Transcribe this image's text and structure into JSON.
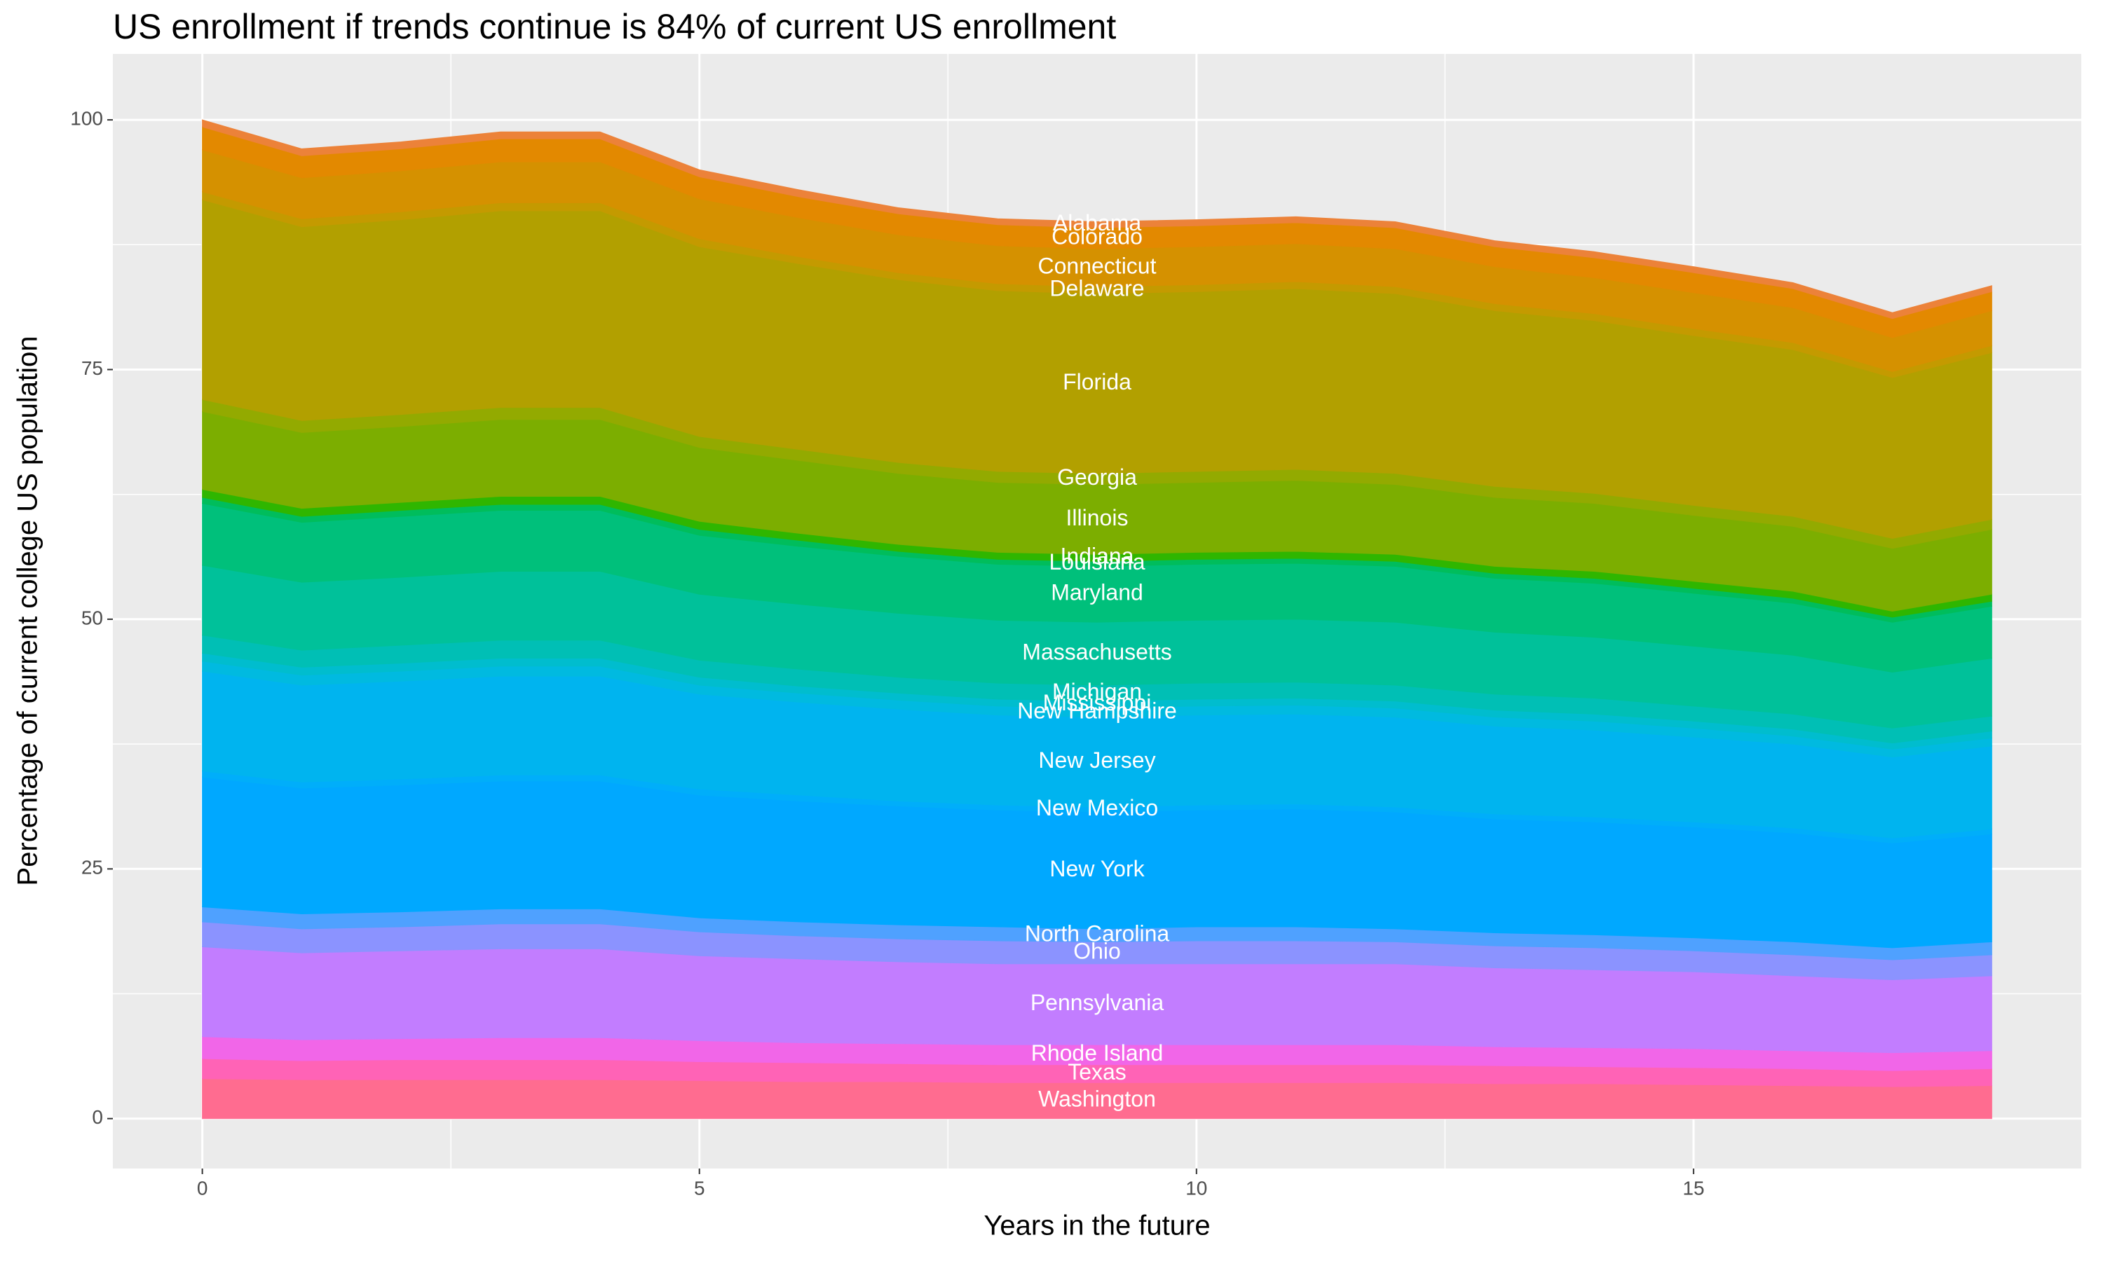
{
  "chart_data": {
    "type": "area",
    "title": "US enrollment if trends continue is 84% of current US enrollment",
    "x_label": "Years in the future",
    "y_label": "Percentage of current college US population",
    "x": [
      0,
      1,
      2,
      3,
      4,
      5,
      6,
      7,
      8,
      9,
      10,
      11,
      12,
      13,
      14,
      15,
      16,
      17,
      18
    ],
    "xlim": [
      -0.9,
      18.9
    ],
    "xticks": [
      0,
      5,
      10,
      15
    ],
    "ylim": [
      -5,
      106.6
    ],
    "yticks": [
      0,
      25,
      50,
      75,
      100
    ],
    "grid": true,
    "stacked": true,
    "series": [
      {
        "name": "Washington",
        "color": "#FF6C90",
        "values": [
          4,
          3.9,
          3.9,
          3.9,
          3.9,
          3.8,
          3.7,
          3.7,
          3.6,
          3.6,
          3.6,
          3.6,
          3.6,
          3.5,
          3.5,
          3.4,
          3.3,
          3.2,
          3.3
        ]
      },
      {
        "name": "Texas",
        "color": "#FF63B6",
        "values": [
          2,
          1.9,
          2,
          2,
          2,
          1.9,
          1.9,
          1.8,
          1.8,
          1.8,
          1.8,
          1.8,
          1.8,
          1.8,
          1.7,
          1.7,
          1.7,
          1.6,
          1.7
        ]
      },
      {
        "name": "Rhode Island",
        "color": "#F166E8",
        "values": [
          2.2,
          2.1,
          2.1,
          2.2,
          2.2,
          2.1,
          2,
          2,
          2,
          2,
          2,
          2,
          2,
          1.9,
          1.9,
          1.9,
          1.8,
          1.8,
          1.8
        ]
      },
      {
        "name": "Pennsylvania",
        "color": "#C27DFF",
        "values": [
          9,
          8.7,
          8.8,
          8.9,
          8.9,
          8.5,
          8.4,
          8.2,
          8.1,
          8.1,
          8.1,
          8.1,
          8.1,
          7.9,
          7.8,
          7.7,
          7.5,
          7.3,
          7.5
        ]
      },
      {
        "name": "Ohio",
        "color": "#8B93FF",
        "values": [
          2.5,
          2.4,
          2.4,
          2.5,
          2.5,
          2.4,
          2.3,
          2.3,
          2.3,
          2.2,
          2.3,
          2.3,
          2.2,
          2.2,
          2.2,
          2.1,
          2.1,
          2,
          2.1
        ]
      },
      {
        "name": "North Carolina",
        "color": "#4FA1FF",
        "values": [
          1.5,
          1.5,
          1.5,
          1.5,
          1.5,
          1.4,
          1.4,
          1.4,
          1.4,
          1.3,
          1.4,
          1.4,
          1.3,
          1.3,
          1.3,
          1.3,
          1.3,
          1.2,
          1.3
        ]
      },
      {
        "name": "New York",
        "color": "#00A8FF",
        "values": [
          13,
          12.6,
          12.7,
          12.8,
          12.8,
          12.3,
          12.1,
          11.9,
          11.7,
          11.7,
          11.7,
          11.8,
          11.7,
          11.4,
          11.3,
          11.1,
          10.9,
          10.5,
          10.8
        ]
      },
      {
        "name": "New Mexico",
        "color": "#00AEFA",
        "values": [
          0.6,
          0.6,
          0.6,
          0.6,
          0.6,
          0.6,
          0.6,
          0.5,
          0.5,
          0.5,
          0.5,
          0.5,
          0.5,
          0.5,
          0.5,
          0.5,
          0.5,
          0.5,
          0.5
        ]
      },
      {
        "name": "New Jersey",
        "color": "#00B4EF",
        "values": [
          10,
          9.7,
          9.8,
          9.9,
          9.9,
          9.5,
          9.3,
          9.2,
          9,
          9,
          9,
          9,
          9,
          8.8,
          8.7,
          8.5,
          8.4,
          8.1,
          8.3
        ]
      },
      {
        "name": "New Hampshire",
        "color": "#00BAE0",
        "values": [
          1,
          1,
          1,
          1,
          1,
          0.9,
          0.9,
          0.9,
          0.9,
          0.9,
          0.9,
          0.9,
          0.9,
          0.9,
          0.9,
          0.9,
          0.8,
          0.8,
          0.8
        ]
      },
      {
        "name": "Mississippi",
        "color": "#00BDCE",
        "values": [
          0.8,
          0.8,
          0.8,
          0.8,
          0.8,
          0.8,
          0.7,
          0.7,
          0.7,
          0.7,
          0.7,
          0.7,
          0.7,
          0.7,
          0.7,
          0.7,
          0.7,
          0.6,
          0.7
        ]
      },
      {
        "name": "Michigan",
        "color": "#00BFB5",
        "values": [
          1.8,
          1.7,
          1.8,
          1.8,
          1.8,
          1.7,
          1.7,
          1.6,
          1.6,
          1.6,
          1.6,
          1.6,
          1.6,
          1.6,
          1.6,
          1.5,
          1.5,
          1.5,
          1.5
        ]
      },
      {
        "name": "Massachusetts",
        "color": "#00C19A",
        "values": [
          7,
          6.8,
          6.8,
          6.9,
          6.9,
          6.6,
          6.5,
          6.4,
          6.3,
          6.3,
          6.3,
          6.3,
          6.3,
          6.2,
          6.1,
          6,
          5.9,
          5.6,
          5.8
        ]
      },
      {
        "name": "Maryland",
        "color": "#00C07B",
        "values": [
          6.2,
          6,
          6.1,
          6.1,
          6.1,
          5.9,
          5.8,
          5.7,
          5.6,
          5.6,
          5.6,
          5.6,
          5.6,
          5.4,
          5.4,
          5.3,
          5.2,
          5,
          5.2
        ]
      },
      {
        "name": "Louisiana",
        "color": "#00BD5C",
        "values": [
          0.6,
          0.6,
          0.6,
          0.6,
          0.6,
          0.6,
          0.6,
          0.5,
          0.5,
          0.5,
          0.5,
          0.5,
          0.5,
          0.5,
          0.5,
          0.5,
          0.5,
          0.5,
          0.5
        ]
      },
      {
        "name": "Indiana",
        "color": "#2FB600",
        "values": [
          0.8,
          0.8,
          0.8,
          0.8,
          0.8,
          0.8,
          0.7,
          0.7,
          0.7,
          0.7,
          0.7,
          0.7,
          0.7,
          0.7,
          0.7,
          0.7,
          0.7,
          0.6,
          0.7
        ]
      },
      {
        "name": "Illinois",
        "color": "#7CAE00",
        "values": [
          7.8,
          7.6,
          7.6,
          7.7,
          7.7,
          7.4,
          7.3,
          7.1,
          7,
          7,
          7,
          7.1,
          7,
          6.9,
          6.8,
          6.6,
          6.5,
          6.3,
          6.5
        ]
      },
      {
        "name": "Georgia",
        "color": "#93AA00",
        "values": [
          1.2,
          1.2,
          1.2,
          1.2,
          1.2,
          1.1,
          1.1,
          1.1,
          1.1,
          1.1,
          1.1,
          1.1,
          1.1,
          1.1,
          1,
          1,
          1,
          1,
          1
        ]
      },
      {
        "name": "Florida",
        "color": "#B2A000",
        "values": [
          20,
          19.4,
          19.5,
          19.7,
          19.7,
          19,
          18.6,
          18.3,
          18.1,
          18,
          18,
          18.1,
          18,
          17.6,
          17.3,
          17,
          16.7,
          16.1,
          16.7
        ]
      },
      {
        "name": "Delaware",
        "color": "#C49A00",
        "values": [
          0.8,
          0.8,
          0.8,
          0.8,
          0.8,
          0.8,
          0.7,
          0.7,
          0.7,
          0.7,
          0.7,
          0.7,
          0.7,
          0.7,
          0.7,
          0.7,
          0.7,
          0.6,
          0.7
        ]
      },
      {
        "name": "Connecticut",
        "color": "#D59100",
        "values": [
          4.2,
          4.1,
          4.1,
          4.1,
          4.1,
          4,
          3.9,
          3.8,
          3.8,
          3.8,
          3.8,
          3.8,
          3.8,
          3.7,
          3.6,
          3.6,
          3.5,
          3.4,
          3.5
        ]
      },
      {
        "name": "Colorado",
        "color": "#E38900",
        "values": [
          2.3,
          2.2,
          2.2,
          2.3,
          2.3,
          2.2,
          2.1,
          2.1,
          2.1,
          2.1,
          2.1,
          2.1,
          2.1,
          2,
          2,
          2,
          1.9,
          1.9,
          1.9
        ]
      },
      {
        "name": "Alabama",
        "color": "#EC8239",
        "values": [
          0.7,
          0.7,
          0.7,
          0.7,
          0.7,
          0.7,
          0.7,
          0.6,
          0.6,
          0.6,
          0.6,
          0.6,
          0.6,
          0.6,
          0.6,
          0.6,
          0.6,
          0.6,
          0.6
        ]
      }
    ]
  }
}
